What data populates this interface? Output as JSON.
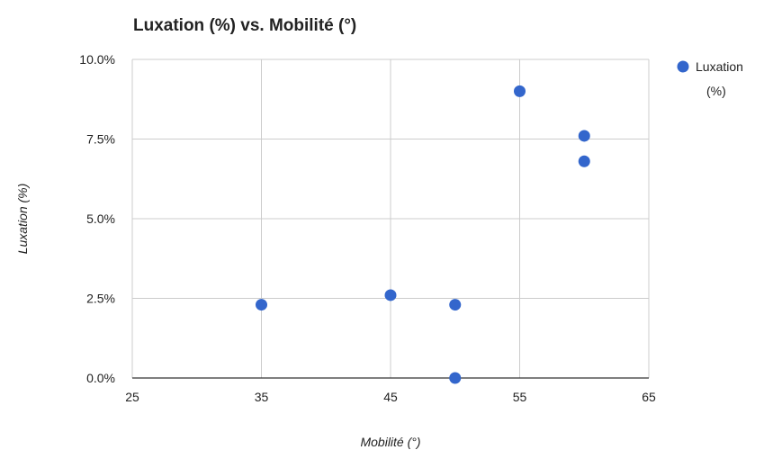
{
  "chart_data": {
    "type": "scatter",
    "title": "Luxation (%) vs. Mobilité (°)",
    "xlabel": "Mobilité (°)",
    "ylabel": "Luxation (%)",
    "xlim": [
      25,
      65
    ],
    "ylim": [
      0,
      10
    ],
    "x_ticks": [
      25,
      35,
      45,
      55,
      65
    ],
    "x_tick_labels": [
      "25",
      "35",
      "45",
      "55",
      "65"
    ],
    "y_ticks": [
      0,
      2.5,
      5,
      7.5,
      10
    ],
    "y_tick_labels": [
      "0.0%",
      "2.5%",
      "5.0%",
      "7.5%",
      "10.0%"
    ],
    "grid": true,
    "legend_position": "right",
    "series": [
      {
        "name": "Luxation (%)",
        "color": "#3366cc",
        "points": [
          {
            "x": 35,
            "y": 2.3
          },
          {
            "x": 45,
            "y": 2.6
          },
          {
            "x": 50,
            "y": 2.3
          },
          {
            "x": 50,
            "y": 0.0
          },
          {
            "x": 55,
            "y": 9.0
          },
          {
            "x": 60,
            "y": 7.6
          },
          {
            "x": 60,
            "y": 6.8
          }
        ]
      }
    ],
    "legend": {
      "label_lines": [
        "Luxation",
        "(%)"
      ]
    }
  }
}
